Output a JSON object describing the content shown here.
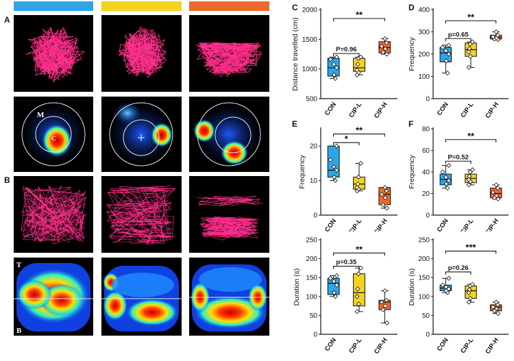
{
  "colors": {
    "con": "#2ea6e6",
    "cipl": "#f5d21f",
    "ciph": "#ee6a2a",
    "track": "#ff2e8a"
  },
  "labels": {
    "a": "A",
    "b": "B",
    "c": "C",
    "d": "D",
    "e": "E",
    "f": "F"
  },
  "heat_labels": {
    "m": "M",
    "c": "C",
    "t": "T",
    "b": "B"
  },
  "chart_data": [
    {
      "id": "C",
      "type": "box",
      "ylabel": "Distance travelled (cm)",
      "ylim": [
        500,
        2000
      ],
      "yticks": [
        500,
        1000,
        1500,
        2000
      ],
      "categories": [
        "CON",
        "CIP-L",
        "CIP-H"
      ],
      "boxes": [
        {
          "min": 840,
          "q1": 880,
          "median": 1020,
          "q3": 1180,
          "max": 1200
        },
        {
          "min": 900,
          "q1": 960,
          "median": 1020,
          "q3": 1180,
          "max": 1200
        },
        {
          "min": 1250,
          "q1": 1270,
          "median": 1360,
          "q3": 1460,
          "max": 1510
        }
      ],
      "points": [
        [
          840,
          900,
          1020,
          1080,
          1160,
          1200
        ],
        [
          900,
          940,
          980,
          1080,
          1180,
          1200
        ],
        [
          1250,
          1280,
          1340,
          1380,
          1440,
          1510
        ]
      ],
      "annotations": [
        {
          "text": "P=0.96",
          "from": 0,
          "to": 1,
          "y": 1260
        },
        {
          "text": "**",
          "from": 0,
          "to": 2,
          "y": 1850
        }
      ]
    },
    {
      "id": "D",
      "type": "box",
      "ylabel": "Frequency",
      "ylim": [
        0,
        400
      ],
      "yticks": [
        0,
        100,
        200,
        300,
        400
      ],
      "categories": [
        "CON",
        "CIP-L",
        "CIP-H"
      ],
      "boxes": [
        {
          "min": 115,
          "q1": 165,
          "median": 205,
          "q3": 230,
          "max": 240
        },
        {
          "min": 140,
          "q1": 190,
          "median": 220,
          "q3": 250,
          "max": 255
        },
        {
          "min": 265,
          "q1": 268,
          "median": 275,
          "q3": 285,
          "max": 300
        }
      ],
      "points": [
        [
          115,
          170,
          200,
          215,
          230,
          240
        ],
        [
          140,
          190,
          210,
          225,
          245,
          255
        ],
        [
          265,
          268,
          272,
          278,
          285,
          300
        ]
      ],
      "annotations": [
        {
          "text": "p=0.65",
          "from": 0,
          "to": 1,
          "y": 270
        },
        {
          "text": "**",
          "from": 0,
          "to": 2,
          "y": 350
        }
      ]
    },
    {
      "id": "E",
      "type": "box",
      "ylabel": "Frequency",
      "ylim": [
        0,
        25
      ],
      "yticks": [
        0,
        10,
        20
      ],
      "categories": [
        "CON",
        "CIP-L",
        "CIP-H"
      ],
      "boxes": [
        {
          "min": 10,
          "q1": 11,
          "median": 13,
          "q3": 20,
          "max": 20
        },
        {
          "min": 7,
          "q1": 7.5,
          "median": 9,
          "q3": 11,
          "max": 15
        },
        {
          "min": 2,
          "q1": 3,
          "median": 6,
          "q3": 8,
          "max": 8
        }
      ],
      "points": [
        [
          10,
          11,
          13,
          14,
          16,
          20
        ],
        [
          7,
          7.5,
          8,
          9,
          11,
          15
        ],
        [
          2,
          3,
          5,
          6,
          7,
          8
        ]
      ],
      "annotations": [
        {
          "text": "*",
          "from": 0,
          "to": 1,
          "y": 21
        },
        {
          "text": "**",
          "from": 0,
          "to": 2,
          "y": 23.5
        }
      ]
    },
    {
      "id": "F",
      "type": "box",
      "ylabel": "Frequency",
      "ylim": [
        0,
        80
      ],
      "yticks": [
        0,
        20,
        40,
        60,
        80
      ],
      "categories": [
        "CON",
        "CIP-L",
        "CIP-H"
      ],
      "boxes": [
        {
          "min": 25,
          "q1": 28,
          "median": 33,
          "q3": 38,
          "max": 46
        },
        {
          "min": 28,
          "q1": 30,
          "median": 34,
          "q3": 38,
          "max": 42
        },
        {
          "min": 15,
          "q1": 16,
          "median": 20,
          "q3": 25,
          "max": 28
        }
      ],
      "points": [
        [
          25,
          29,
          32,
          35,
          40,
          46
        ],
        [
          28,
          31,
          33,
          36,
          40,
          42
        ],
        [
          15,
          16,
          18,
          21,
          25,
          28
        ]
      ],
      "annotations": [
        {
          "text": "P=0.52",
          "from": 0,
          "to": 1,
          "y": 50
        },
        {
          "text": "**",
          "from": 0,
          "to": 2,
          "y": 70
        }
      ]
    },
    {
      "id": "G",
      "type": "box",
      "ylabel": "Duration (s)",
      "ylim": [
        0,
        250
      ],
      "yticks": [
        0,
        50,
        100,
        150,
        200,
        250
      ],
      "categories": [
        "CON",
        "CIP-L",
        "CIP-H"
      ],
      "boxes": [
        {
          "min": 100,
          "q1": 105,
          "median": 135,
          "q3": 148,
          "max": 155
        },
        {
          "min": 60,
          "q1": 75,
          "median": 110,
          "q3": 160,
          "max": 175
        },
        {
          "min": 30,
          "q1": 65,
          "median": 85,
          "q3": 90,
          "max": 115
        }
      ],
      "points": [
        [
          100,
          110,
          130,
          140,
          148,
          155
        ],
        [
          60,
          80,
          100,
          120,
          160,
          175
        ],
        [
          30,
          65,
          75,
          85,
          90,
          115
        ]
      ],
      "annotations": [
        {
          "text": "p=0.35",
          "from": 0,
          "to": 1,
          "y": 180
        },
        {
          "text": "**",
          "from": 0,
          "to": 2,
          "y": 215
        }
      ]
    },
    {
      "id": "H",
      "type": "box",
      "ylabel": "Duration (s)",
      "ylim": [
        0,
        250
      ],
      "yticks": [
        0,
        50,
        100,
        150,
        200,
        250
      ],
      "categories": [
        "CON",
        "CIP-L",
        "CIP-H"
      ],
      "boxes": [
        {
          "min": 110,
          "q1": 115,
          "median": 122,
          "q3": 130,
          "max": 148
        },
        {
          "min": 85,
          "q1": 95,
          "median": 115,
          "q3": 128,
          "max": 132
        },
        {
          "min": 55,
          "q1": 62,
          "median": 72,
          "q3": 78,
          "max": 85
        }
      ],
      "points": [
        [
          110,
          115,
          120,
          125,
          130,
          148
        ],
        [
          85,
          95,
          110,
          118,
          128,
          132
        ],
        [
          55,
          62,
          68,
          72,
          78,
          85
        ]
      ],
      "annotations": [
        {
          "text": "p=0.26",
          "from": 0,
          "to": 1,
          "y": 165
        },
        {
          "text": "***",
          "from": 0,
          "to": 2,
          "y": 220
        }
      ]
    }
  ]
}
